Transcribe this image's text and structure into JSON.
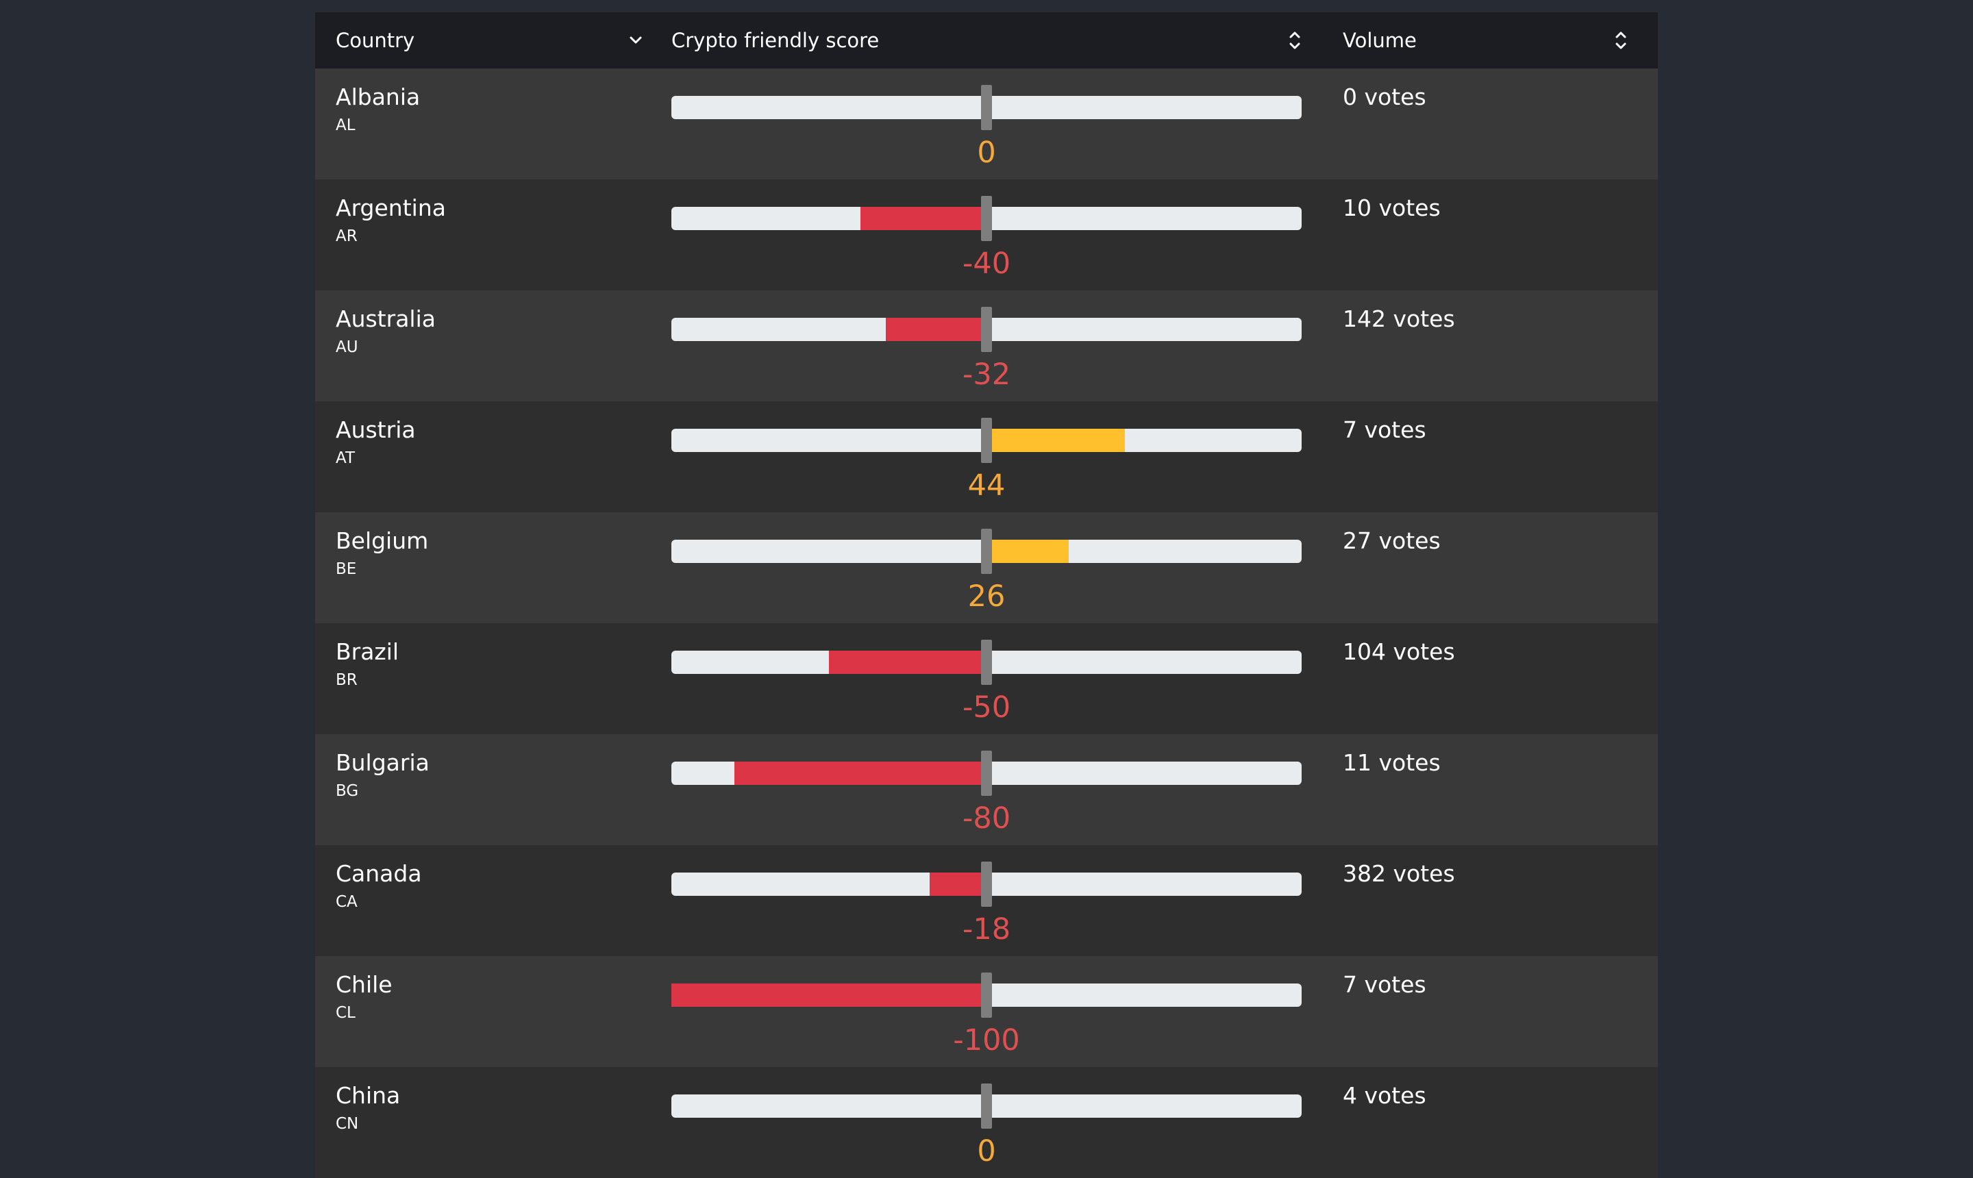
{
  "header": {
    "country_label": "Country",
    "score_label": "Crypto friendly score",
    "volume_label": "Volume"
  },
  "colors": {
    "background": "#272b33",
    "header_bg": "#1b1d22",
    "negative": "#dc3545",
    "positive": "#ffc02d",
    "negative_text": "#e05050",
    "positive_text": "#f4a93a",
    "track": "#e9ecef"
  },
  "rows": [
    {
      "name": "Albania",
      "code": "AL",
      "score": 0,
      "score_label": "0",
      "volume": "0 votes"
    },
    {
      "name": "Argentina",
      "code": "AR",
      "score": -40,
      "score_label": "-40",
      "volume": "10 votes"
    },
    {
      "name": "Australia",
      "code": "AU",
      "score": -32,
      "score_label": "-32",
      "volume": "142 votes"
    },
    {
      "name": "Austria",
      "code": "AT",
      "score": 44,
      "score_label": "44",
      "volume": "7 votes"
    },
    {
      "name": "Belgium",
      "code": "BE",
      "score": 26,
      "score_label": "26",
      "volume": "27 votes"
    },
    {
      "name": "Brazil",
      "code": "BR",
      "score": -50,
      "score_label": "-50",
      "volume": "104 votes"
    },
    {
      "name": "Bulgaria",
      "code": "BG",
      "score": -80,
      "score_label": "-80",
      "volume": "11 votes"
    },
    {
      "name": "Canada",
      "code": "CA",
      "score": -18,
      "score_label": "-18",
      "volume": "382 votes"
    },
    {
      "name": "Chile",
      "code": "CL",
      "score": -100,
      "score_label": "-100",
      "volume": "7 votes"
    },
    {
      "name": "China",
      "code": "CN",
      "score": 0,
      "score_label": "0",
      "volume": "4 votes"
    }
  ],
  "icons": {
    "country_sort": "chevron-down-icon",
    "score_sort": "sort-updown-icon",
    "volume_sort": "sort-updown-icon"
  }
}
